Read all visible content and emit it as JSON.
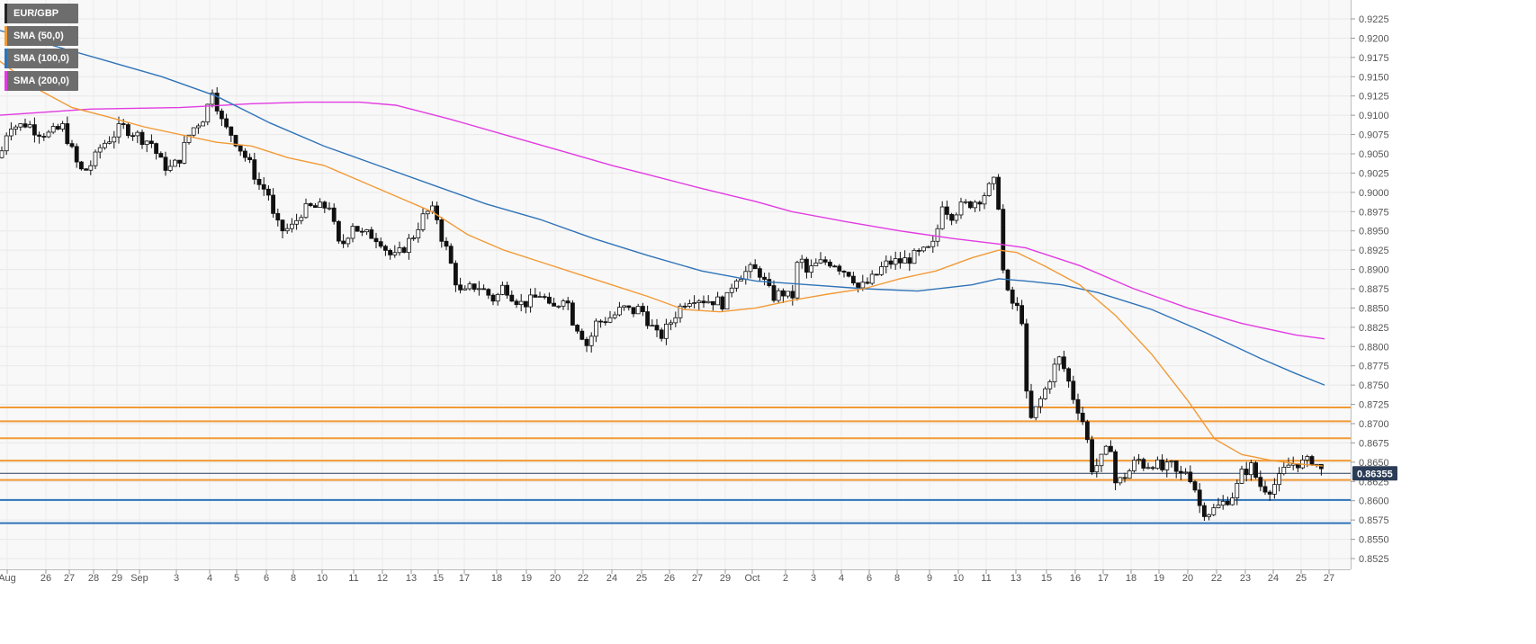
{
  "chart_data": {
    "type": "candlestick",
    "symbol": "EUR/GBP",
    "legend": [
      {
        "label": "EUR/GBP",
        "color": "#222222"
      },
      {
        "label": "SMA (50,0)",
        "color": "#f29a36"
      },
      {
        "label": "SMA (100,0)",
        "color": "#2f73b8"
      },
      {
        "label": "SMA (200,0)",
        "color": "#e23be2"
      }
    ],
    "ylim": [
      0.8515,
      0.9245
    ],
    "y_ticks": [
      "0.9225",
      "0.9200",
      "0.9175",
      "0.9150",
      "0.9125",
      "0.9100",
      "0.9075",
      "0.9050",
      "0.9025",
      "0.9000",
      "0.8975",
      "0.8950",
      "0.8925",
      "0.8900",
      "0.8875",
      "0.8850",
      "0.8825",
      "0.8800",
      "0.8775",
      "0.8750",
      "0.8725",
      "0.8700",
      "0.8675",
      "0.8650",
      "0.8625",
      "0.8600",
      "0.8575",
      "0.8550",
      "0.8525"
    ],
    "x_ticks": [
      "Aug",
      "26",
      "27",
      "28",
      "29",
      "Sep",
      "3",
      "4",
      "5",
      "6",
      "8",
      "10",
      "11",
      "12",
      "13",
      "15",
      "17",
      "18",
      "19",
      "20",
      "22",
      "24",
      "25",
      "26",
      "27",
      "29",
      "Oct",
      "2",
      "3",
      "4",
      "6",
      "8",
      "9",
      "10",
      "11",
      "13",
      "15",
      "16",
      "17",
      "18",
      "19",
      "20",
      "22",
      "23",
      "24",
      "25",
      "27"
    ],
    "grid": true,
    "current_price": "0.86355",
    "current_price_value": 0.86355,
    "horizontal_levels": [
      {
        "value": 0.8721,
        "color": "#f29a36"
      },
      {
        "value": 0.8703,
        "color": "#f29a36"
      },
      {
        "value": 0.8681,
        "color": "#f29a36"
      },
      {
        "value": 0.8652,
        "color": "#f29a36"
      },
      {
        "value": 0.8627,
        "color": "#f29a36"
      },
      {
        "value": 0.8601,
        "color": "#2f73b8"
      },
      {
        "value": 0.8571,
        "color": "#2f73b8"
      }
    ],
    "close_path": [
      [
        0,
        0.9045
      ],
      [
        10,
        0.909
      ],
      [
        20,
        0.9085
      ],
      [
        30,
        0.909
      ],
      [
        40,
        0.908
      ],
      [
        55,
        0.9075
      ],
      [
        70,
        0.9085
      ],
      [
        78,
        0.906
      ],
      [
        84,
        0.904
      ],
      [
        92,
        0.9025
      ],
      [
        104,
        0.904
      ],
      [
        112,
        0.906
      ],
      [
        122,
        0.907
      ],
      [
        135,
        0.9085
      ],
      [
        145,
        0.908
      ],
      [
        158,
        0.907
      ],
      [
        168,
        0.9065
      ],
      [
        178,
        0.904
      ],
      [
        188,
        0.903
      ],
      [
        198,
        0.904
      ],
      [
        205,
        0.906
      ],
      [
        212,
        0.908
      ],
      [
        220,
        0.909
      ],
      [
        228,
        0.91
      ],
      [
        236,
        0.9135
      ],
      [
        242,
        0.911
      ],
      [
        248,
        0.9085
      ],
      [
        258,
        0.9075
      ],
      [
        268,
        0.9055
      ],
      [
        278,
        0.9035
      ],
      [
        288,
        0.901
      ],
      [
        298,
        0.9
      ],
      [
        305,
        0.896
      ],
      [
        315,
        0.895
      ],
      [
        325,
        0.8955
      ],
      [
        335,
        0.8975
      ],
      [
        345,
        0.898
      ],
      [
        358,
        0.898
      ],
      [
        368,
        0.8985
      ],
      [
        374,
        0.893
      ],
      [
        382,
        0.8935
      ],
      [
        392,
        0.896
      ],
      [
        402,
        0.8945
      ],
      [
        412,
        0.8945
      ],
      [
        422,
        0.894
      ],
      [
        432,
        0.892
      ],
      [
        440,
        0.8915
      ],
      [
        450,
        0.893
      ],
      [
        460,
        0.8945
      ],
      [
        468,
        0.8965
      ],
      [
        476,
        0.8975
      ],
      [
        484,
        0.8975
      ],
      [
        490,
        0.8945
      ],
      [
        498,
        0.892
      ],
      [
        505,
        0.889
      ],
      [
        513,
        0.8865
      ],
      [
        522,
        0.8875
      ],
      [
        530,
        0.888
      ],
      [
        540,
        0.887
      ],
      [
        550,
        0.886
      ],
      [
        560,
        0.888
      ],
      [
        570,
        0.8865
      ],
      [
        580,
        0.8855
      ],
      [
        592,
        0.886
      ],
      [
        602,
        0.887
      ],
      [
        612,
        0.8845
      ],
      [
        620,
        0.8855
      ],
      [
        628,
        0.887
      ],
      [
        636,
        0.8835
      ],
      [
        645,
        0.882
      ],
      [
        653,
        0.88
      ],
      [
        662,
        0.883
      ],
      [
        672,
        0.8835
      ],
      [
        682,
        0.884
      ],
      [
        692,
        0.885
      ],
      [
        702,
        0.8845
      ],
      [
        712,
        0.885
      ],
      [
        722,
        0.883
      ],
      [
        732,
        0.881
      ],
      [
        742,
        0.8825
      ],
      [
        752,
        0.8845
      ],
      [
        762,
        0.886
      ],
      [
        772,
        0.8865
      ],
      [
        784,
        0.886
      ],
      [
        794,
        0.886
      ],
      [
        806,
        0.8855
      ],
      [
        816,
        0.889
      ],
      [
        826,
        0.8895
      ],
      [
        836,
        0.89
      ],
      [
        846,
        0.8895
      ],
      [
        852,
        0.8875
      ],
      [
        860,
        0.8865
      ],
      [
        870,
        0.887
      ],
      [
        880,
        0.886
      ],
      [
        888,
        0.892
      ],
      [
        896,
        0.8895
      ],
      [
        906,
        0.8905
      ],
      [
        916,
        0.891
      ],
      [
        926,
        0.891
      ],
      [
        936,
        0.89
      ],
      [
        946,
        0.8895
      ],
      [
        954,
        0.8875
      ],
      [
        962,
        0.888
      ],
      [
        972,
        0.889
      ],
      [
        982,
        0.8905
      ],
      [
        992,
        0.891
      ],
      [
        1002,
        0.891
      ],
      [
        1012,
        0.8915
      ],
      [
        1022,
        0.892
      ],
      [
        1032,
        0.8925
      ],
      [
        1040,
        0.8935
      ],
      [
        1046,
        0.899
      ],
      [
        1056,
        0.897
      ],
      [
        1066,
        0.898
      ],
      [
        1076,
        0.8985
      ],
      [
        1086,
        0.899
      ],
      [
        1096,
        0.9
      ],
      [
        1102,
        0.901
      ],
      [
        1108,
        0.9015
      ],
      [
        1112,
        0.894
      ],
      [
        1116,
        0.888
      ],
      [
        1122,
        0.886
      ],
      [
        1130,
        0.885
      ],
      [
        1136,
        0.8835
      ],
      [
        1140,
        0.874
      ],
      [
        1146,
        0.8705
      ],
      [
        1154,
        0.8725
      ],
      [
        1162,
        0.8745
      ],
      [
        1170,
        0.877
      ],
      [
        1178,
        0.8785
      ],
      [
        1186,
        0.876
      ],
      [
        1194,
        0.873
      ],
      [
        1202,
        0.871
      ],
      [
        1208,
        0.868
      ],
      [
        1214,
        0.864
      ],
      [
        1222,
        0.865
      ],
      [
        1228,
        0.866
      ],
      [
        1234,
        0.8675
      ],
      [
        1240,
        0.862
      ],
      [
        1248,
        0.863
      ],
      [
        1256,
        0.864
      ],
      [
        1264,
        0.8655
      ],
      [
        1272,
        0.8645
      ],
      [
        1282,
        0.865
      ],
      [
        1292,
        0.864
      ],
      [
        1302,
        0.8645
      ],
      [
        1310,
        0.863
      ],
      [
        1318,
        0.864
      ],
      [
        1326,
        0.8625
      ],
      [
        1334,
        0.859
      ],
      [
        1342,
        0.8585
      ],
      [
        1352,
        0.859
      ],
      [
        1362,
        0.86
      ],
      [
        1372,
        0.861
      ],
      [
        1380,
        0.8635
      ],
      [
        1390,
        0.8645
      ],
      [
        1400,
        0.862
      ],
      [
        1410,
        0.8615
      ],
      [
        1420,
        0.8625
      ],
      [
        1430,
        0.8645
      ],
      [
        1440,
        0.865
      ],
      [
        1450,
        0.8648
      ],
      [
        1460,
        0.8655
      ],
      [
        1466,
        0.864
      ],
      [
        1472,
        0.8636
      ]
    ],
    "sma50_path": [
      [
        0,
        0.917
      ],
      [
        40,
        0.9135
      ],
      [
        80,
        0.911
      ],
      [
        120,
        0.9098
      ],
      [
        160,
        0.9085
      ],
      [
        200,
        0.9075
      ],
      [
        240,
        0.9065
      ],
      [
        280,
        0.906
      ],
      [
        320,
        0.9045
      ],
      [
        360,
        0.9035
      ],
      [
        400,
        0.9015
      ],
      [
        440,
        0.8995
      ],
      [
        480,
        0.8975
      ],
      [
        520,
        0.8945
      ],
      [
        560,
        0.8925
      ],
      [
        600,
        0.891
      ],
      [
        640,
        0.8895
      ],
      [
        680,
        0.888
      ],
      [
        720,
        0.8865
      ],
      [
        760,
        0.8848
      ],
      [
        800,
        0.8845
      ],
      [
        840,
        0.885
      ],
      [
        880,
        0.886
      ],
      [
        920,
        0.8868
      ],
      [
        960,
        0.8875
      ],
      [
        1000,
        0.8888
      ],
      [
        1040,
        0.8898
      ],
      [
        1080,
        0.8915
      ],
      [
        1110,
        0.8925
      ],
      [
        1130,
        0.8922
      ],
      [
        1160,
        0.8905
      ],
      [
        1200,
        0.888
      ],
      [
        1240,
        0.884
      ],
      [
        1280,
        0.879
      ],
      [
        1320,
        0.873
      ],
      [
        1350,
        0.868
      ],
      [
        1380,
        0.866
      ],
      [
        1410,
        0.8653
      ],
      [
        1440,
        0.8648
      ],
      [
        1470,
        0.8645
      ]
    ],
    "sma100_path": [
      [
        0,
        0.921
      ],
      [
        60,
        0.919
      ],
      [
        120,
        0.917
      ],
      [
        180,
        0.915
      ],
      [
        240,
        0.9125
      ],
      [
        300,
        0.909
      ],
      [
        360,
        0.906
      ],
      [
        420,
        0.9035
      ],
      [
        480,
        0.901
      ],
      [
        540,
        0.8985
      ],
      [
        600,
        0.8965
      ],
      [
        660,
        0.894
      ],
      [
        720,
        0.8918
      ],
      [
        780,
        0.8898
      ],
      [
        840,
        0.8885
      ],
      [
        900,
        0.888
      ],
      [
        960,
        0.8875
      ],
      [
        1020,
        0.8872
      ],
      [
        1080,
        0.888
      ],
      [
        1110,
        0.8888
      ],
      [
        1140,
        0.8885
      ],
      [
        1180,
        0.888
      ],
      [
        1220,
        0.887
      ],
      [
        1280,
        0.8848
      ],
      [
        1340,
        0.8818
      ],
      [
        1400,
        0.8785
      ],
      [
        1440,
        0.8765
      ],
      [
        1472,
        0.875
      ]
    ],
    "sma200_path": [
      [
        0,
        0.91
      ],
      [
        100,
        0.9108
      ],
      [
        200,
        0.911
      ],
      [
        280,
        0.9115
      ],
      [
        340,
        0.9117
      ],
      [
        400,
        0.9117
      ],
      [
        440,
        0.9113
      ],
      [
        500,
        0.9095
      ],
      [
        560,
        0.9075
      ],
      [
        620,
        0.9055
      ],
      [
        680,
        0.9035
      ],
      [
        720,
        0.9023
      ],
      [
        780,
        0.9005
      ],
      [
        840,
        0.8988
      ],
      [
        880,
        0.8975
      ],
      [
        940,
        0.8962
      ],
      [
        1000,
        0.895
      ],
      [
        1060,
        0.894
      ],
      [
        1110,
        0.8933
      ],
      [
        1140,
        0.8928
      ],
      [
        1200,
        0.8905
      ],
      [
        1260,
        0.8875
      ],
      [
        1320,
        0.885
      ],
      [
        1380,
        0.883
      ],
      [
        1440,
        0.8815
      ],
      [
        1472,
        0.881
      ]
    ]
  }
}
